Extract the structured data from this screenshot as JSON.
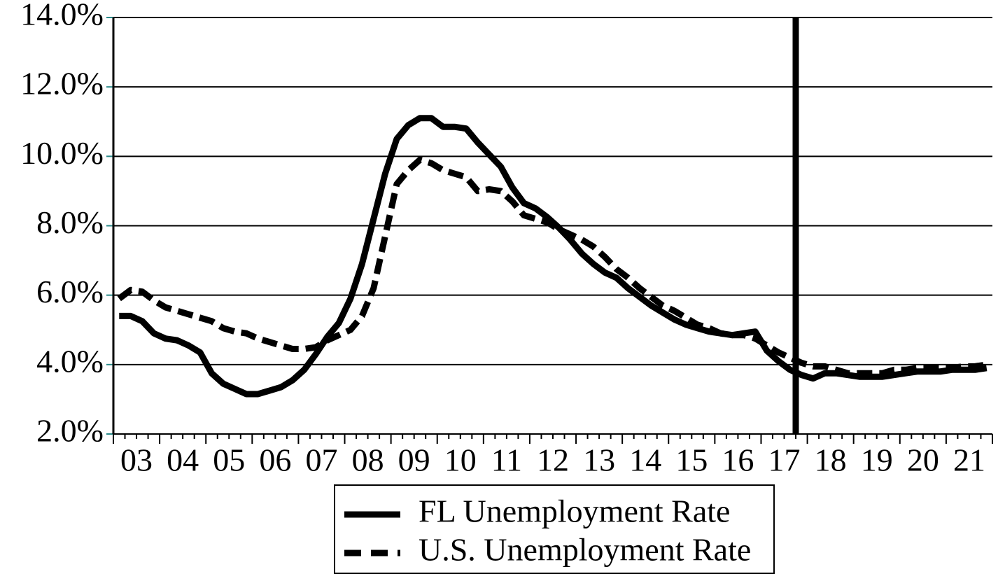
{
  "chart_data": {
    "type": "line",
    "categories": [
      null,
      "03",
      null,
      null,
      null,
      "04",
      null,
      null,
      null,
      "05",
      null,
      null,
      null,
      "06",
      null,
      null,
      null,
      "07",
      null,
      null,
      null,
      "08",
      null,
      null,
      null,
      "09",
      null,
      null,
      null,
      "10",
      null,
      null,
      null,
      "11",
      null,
      null,
      null,
      "12",
      null,
      null,
      null,
      "13",
      null,
      null,
      null,
      "14",
      null,
      null,
      null,
      "15",
      null,
      null,
      null,
      "16",
      null,
      null,
      null,
      "17",
      null,
      null,
      null,
      "18",
      null,
      null,
      null,
      "19",
      null,
      null,
      null,
      "20",
      null,
      null,
      null,
      "21",
      null,
      null
    ],
    "series": [
      {
        "name": "FL Unemployment Rate",
        "color": "#000000",
        "dash": false,
        "values": [
          5.4,
          5.4,
          5.25,
          4.9,
          4.75,
          4.7,
          4.55,
          4.35,
          3.75,
          3.45,
          3.3,
          3.15,
          3.15,
          3.25,
          3.35,
          3.55,
          3.85,
          4.3,
          4.8,
          5.2,
          5.9,
          6.9,
          8.2,
          9.5,
          10.5,
          10.9,
          11.1,
          11.1,
          10.85,
          10.85,
          10.8,
          10.4,
          10.05,
          9.7,
          9.1,
          8.65,
          8.5,
          8.25,
          7.95,
          7.6,
          7.2,
          6.9,
          6.65,
          6.5,
          6.2,
          5.95,
          5.7,
          5.5,
          5.3,
          5.15,
          5.05,
          4.95,
          4.9,
          4.85,
          4.9,
          4.95,
          4.4,
          4.1,
          3.85,
          3.7,
          3.6,
          3.75,
          3.75,
          3.7,
          3.65,
          3.65,
          3.65,
          3.7,
          3.75,
          3.8,
          3.8,
          3.8,
          3.85,
          3.85,
          3.85,
          3.9
        ]
      },
      {
        "name": "U.S. Unemployment Rate",
        "color": "#000000",
        "dash": true,
        "values": [
          5.9,
          6.15,
          6.1,
          5.85,
          5.65,
          5.55,
          5.45,
          5.35,
          5.25,
          5.05,
          4.95,
          4.9,
          4.75,
          4.65,
          4.55,
          4.45,
          4.45,
          4.5,
          4.7,
          4.85,
          5.0,
          5.4,
          6.2,
          7.7,
          9.2,
          9.6,
          9.9,
          9.8,
          9.6,
          9.5,
          9.4,
          9.0,
          9.05,
          9.0,
          8.7,
          8.3,
          8.2,
          8.1,
          7.9,
          7.75,
          7.6,
          7.4,
          7.1,
          6.75,
          6.5,
          6.2,
          5.95,
          5.7,
          5.55,
          5.35,
          5.15,
          5.05,
          4.9,
          4.85,
          4.85,
          4.75,
          4.55,
          4.35,
          4.2,
          4.05,
          3.95,
          3.95,
          3.85,
          3.75,
          3.75,
          3.75,
          3.75,
          3.85,
          3.85,
          3.9,
          3.9,
          3.9,
          3.9,
          3.95,
          3.95,
          4.0
        ]
      }
    ],
    "ylim": [
      2,
      14
    ],
    "yticks": [
      {
        "value": 2,
        "label": "2.0%"
      },
      {
        "value": 4,
        "label": "4.0%"
      },
      {
        "value": 6,
        "label": "6.0%"
      },
      {
        "value": 8,
        "label": "8.0%"
      },
      {
        "value": 10,
        "label": "10.0%"
      },
      {
        "value": 12,
        "label": "12.0%"
      },
      {
        "value": 14,
        "label": "14.0%"
      }
    ],
    "grid": true
  }
}
